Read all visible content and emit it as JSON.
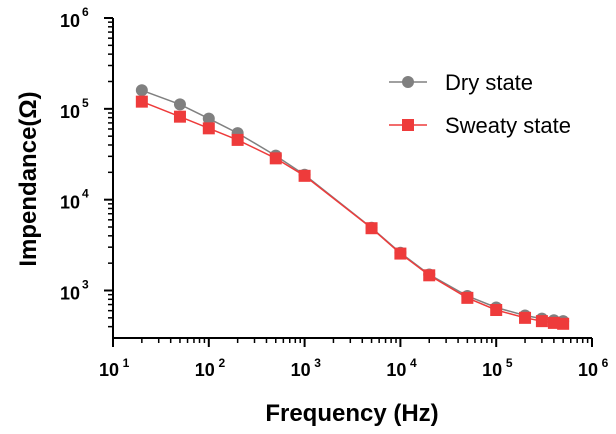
{
  "chart_data": {
    "type": "line",
    "xscale": "log",
    "yscale": "log",
    "xlabel": "Frequency (Hz)",
    "ylabel": "Impendance(Ω)",
    "xlim": [
      10,
      1000000
    ],
    "ylim": [
      300,
      1000000
    ],
    "xticks": [
      {
        "value": 10,
        "base": "10",
        "exp": "1"
      },
      {
        "value": 100,
        "base": "10",
        "exp": "2"
      },
      {
        "value": 1000,
        "base": "10",
        "exp": "3"
      },
      {
        "value": 10000,
        "base": "10",
        "exp": "4"
      },
      {
        "value": 100000,
        "base": "10",
        "exp": "5"
      },
      {
        "value": 1000000,
        "base": "10",
        "exp": "6"
      }
    ],
    "yticks": [
      {
        "value": 1000,
        "base": "10",
        "exp": "3"
      },
      {
        "value": 10000,
        "base": "10",
        "exp": "4"
      },
      {
        "value": 100000,
        "base": "10",
        "exp": "5"
      },
      {
        "value": 1000000,
        "base": "10",
        "exp": "6"
      }
    ],
    "grid": false,
    "legend_position": "top-right",
    "x": [
      20,
      50,
      100,
      200,
      500,
      1000,
      5000,
      10000,
      20000,
      50000,
      100000,
      200000,
      300000,
      400000,
      500000
    ],
    "series": [
      {
        "name": "Dry state",
        "color": "#808080",
        "marker": "circle",
        "values": [
          160000,
          112000,
          78000,
          54000,
          30500,
          18800,
          4900,
          2600,
          1500,
          870,
          650,
          530,
          490,
          470,
          460
        ]
      },
      {
        "name": "Sweaty state",
        "color": "#ee3b3b",
        "marker": "square",
        "values": [
          120000,
          82000,
          61000,
          45500,
          28500,
          18300,
          4850,
          2550,
          1470,
          830,
          610,
          500,
          460,
          440,
          430
        ]
      }
    ]
  }
}
